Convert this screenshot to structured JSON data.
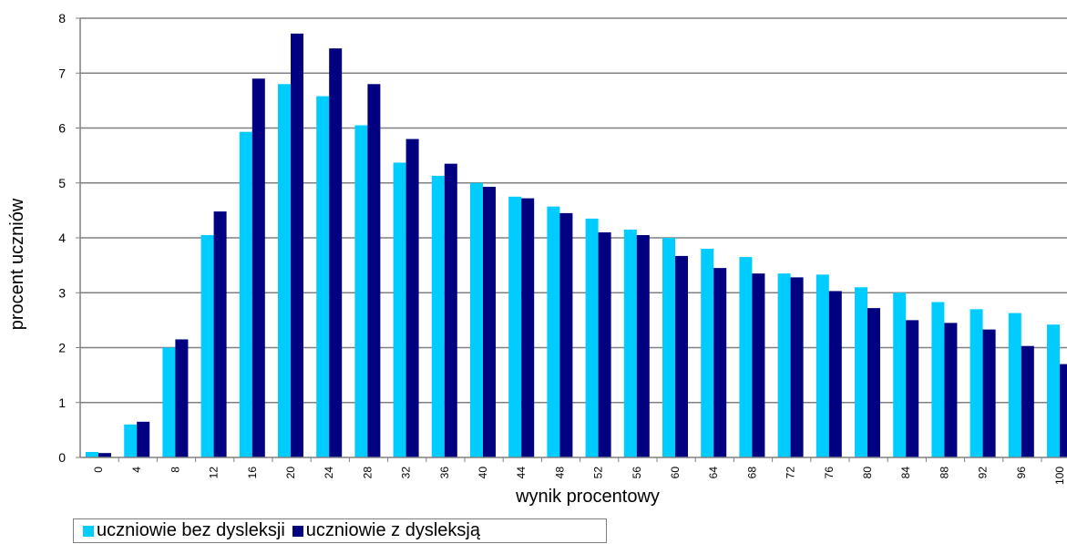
{
  "chart_data": {
    "type": "bar",
    "xlabel": "wynik procentowy",
    "ylabel": "procent uczniów",
    "ylim": [
      0,
      8
    ],
    "yticks": [
      "0",
      "1",
      "2",
      "3",
      "4",
      "5",
      "6",
      "7",
      "8"
    ],
    "grid": true,
    "legend_position": "bottom-left",
    "categories": [
      "0",
      "4",
      "8",
      "12",
      "16",
      "20",
      "24",
      "28",
      "32",
      "36",
      "40",
      "44",
      "48",
      "52",
      "56",
      "60",
      "64",
      "68",
      "72",
      "76",
      "80",
      "84",
      "88",
      "92",
      "96",
      "100"
    ],
    "series": [
      {
        "name": "uczniowie bez dysleksji",
        "color": "#00CCFF",
        "values": [
          0.1,
          0.6,
          2.0,
          4.05,
          5.93,
          6.8,
          6.58,
          6.05,
          5.37,
          5.13,
          5.0,
          4.75,
          4.57,
          4.35,
          4.15,
          4.0,
          3.8,
          3.65,
          3.35,
          3.33,
          3.1,
          3.0,
          2.83,
          2.7,
          2.63,
          2.42
        ]
      },
      {
        "name": "uczniowie z dysleksją",
        "color": "#000080",
        "values": [
          0.08,
          0.65,
          2.15,
          4.48,
          6.9,
          7.72,
          7.45,
          6.8,
          5.8,
          5.35,
          4.93,
          4.72,
          4.45,
          4.1,
          4.05,
          3.67,
          3.45,
          3.35,
          3.28,
          3.03,
          2.72,
          2.5,
          2.45,
          2.33,
          2.03,
          1.7
        ]
      }
    ]
  }
}
